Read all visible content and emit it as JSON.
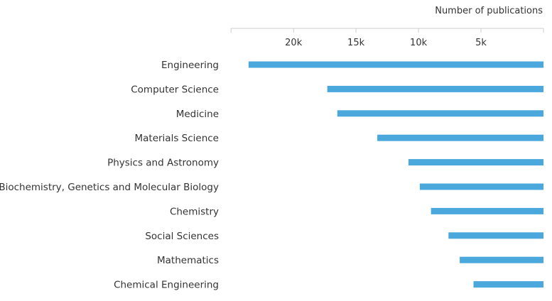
{
  "chart_data": {
    "type": "bar",
    "orientation": "horizontal",
    "x_reversed": true,
    "xlabel": "Number of publications",
    "xlim": [
      0,
      25000
    ],
    "xticks": [
      20000,
      15000,
      10000,
      5000
    ],
    "xtick_labels": [
      "20k",
      "15k",
      "10k",
      "5k"
    ],
    "categories": [
      "Engineering",
      "Computer Science",
      "Medicine",
      "Materials Science",
      "Physics and Astronomy",
      "Biochemistry, Genetics and Molecular Biology",
      "Chemistry",
      "Social Sciences",
      "Mathematics",
      "Chemical Engineering"
    ],
    "values": [
      23600,
      17300,
      16500,
      13300,
      10800,
      9900,
      9000,
      7600,
      6700,
      5600
    ],
    "bar_color": "#4aa8dc",
    "axis_color": "#cccccc",
    "grid": false,
    "legend": "none"
  }
}
